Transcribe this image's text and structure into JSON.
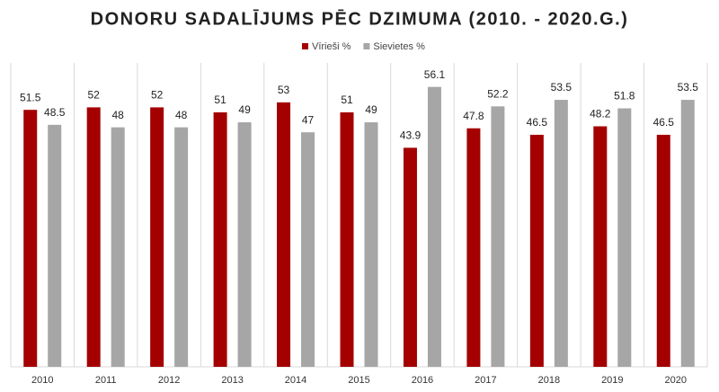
{
  "chart_data": {
    "type": "bar",
    "title": "DONORU SADALĪJUMS PĒC DZIMUMA (2010. - 2020.G.)",
    "categories": [
      "2010",
      "2011",
      "2012",
      "2013",
      "2014",
      "2015",
      "2016",
      "2017",
      "2018",
      "2019",
      "2020"
    ],
    "series": [
      {
        "name": "Vīrieši %",
        "color": "#a50000",
        "values": [
          51.5,
          52,
          52,
          51,
          53,
          51,
          43.9,
          47.8,
          46.5,
          48.2,
          46.5
        ]
      },
      {
        "name": "Sievietes %",
        "color": "#a6a6a6",
        "values": [
          48.5,
          48,
          48,
          49,
          47,
          49,
          56.1,
          52.2,
          53.5,
          51.8,
          53.5
        ]
      }
    ],
    "ylim": [
      0,
      60
    ],
    "legend": "top"
  }
}
